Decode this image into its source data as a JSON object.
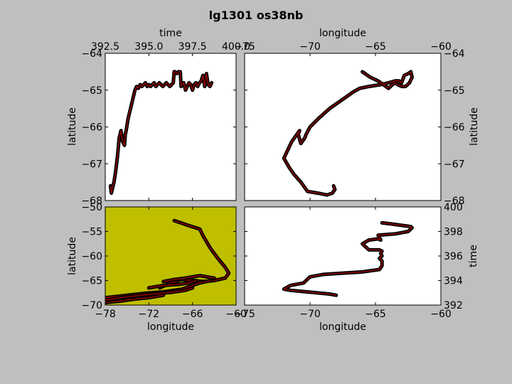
{
  "title": "lg1301 os38nb",
  "colors": {
    "figure_bg": "#bfbfbf",
    "panel_bg": "#ffffff",
    "map_bg": "#bfbf00",
    "track": "#000000",
    "track_inner": "#8b0000"
  },
  "chart_data": [
    {
      "id": "time-latitude",
      "type": "line",
      "xlabel": "time",
      "ylabel": "latitude",
      "x_axis_position": "top",
      "y_axis_position": "left",
      "xlim": [
        392.5,
        400.0
      ],
      "ylim": [
        -68,
        -64
      ],
      "xticks": [
        "392.5",
        "395.0",
        "397.5",
        "400.0"
      ],
      "yticks": [
        "−64",
        "−65",
        "−66",
        "−67",
        "−68"
      ],
      "series": [
        {
          "x": [
            392.8,
            392.85,
            392.9,
            393.0,
            393.1,
            393.2,
            393.3,
            393.4,
            393.5,
            393.6,
            393.65,
            393.7,
            393.8,
            393.9,
            394.0,
            394.1,
            394.2,
            394.3,
            394.4,
            394.5,
            394.6,
            394.7,
            394.8,
            394.9,
            395.0,
            395.1,
            395.2,
            395.3,
            395.4,
            395.5,
            395.6,
            395.7,
            395.8,
            395.9,
            396.0,
            396.1,
            396.2,
            396.3,
            396.4,
            396.45,
            396.5,
            396.6,
            396.7,
            396.8,
            396.85,
            396.9,
            397.0,
            397.1,
            397.2,
            397.3,
            397.4,
            397.5,
            397.6,
            397.7,
            397.8,
            397.9,
            398.0,
            398.1,
            398.2,
            398.3,
            398.4,
            398.5,
            398.6
          ],
          "y": [
            -67.6,
            -67.8,
            -67.7,
            -67.5,
            -67.2,
            -66.8,
            -66.3,
            -66.1,
            -66.4,
            -66.5,
            -66.2,
            -66.1,
            -65.8,
            -65.6,
            -65.4,
            -65.2,
            -65.0,
            -64.9,
            -64.95,
            -64.85,
            -64.9,
            -64.85,
            -64.8,
            -64.9,
            -64.85,
            -64.9,
            -64.85,
            -64.8,
            -64.9,
            -64.85,
            -64.8,
            -64.85,
            -64.9,
            -64.85,
            -64.8,
            -64.85,
            -64.9,
            -64.85,
            -64.8,
            -64.5,
            -64.5,
            -64.55,
            -64.5,
            -64.5,
            -64.9,
            -64.85,
            -64.8,
            -65.0,
            -64.9,
            -64.8,
            -64.85,
            -65.0,
            -64.85,
            -64.8,
            -64.9,
            -64.8,
            -64.75,
            -64.6,
            -64.9,
            -64.55,
            -64.85,
            -64.9,
            -64.8
          ]
        }
      ]
    },
    {
      "id": "longitude-latitude",
      "type": "line",
      "xlabel": "longitude",
      "ylabel": "latitude",
      "x_axis_position": "top",
      "y_axis_position": "right",
      "xlim": [
        -75,
        -60
      ],
      "ylim": [
        -68,
        -64
      ],
      "xticks": [
        "−75",
        "−70",
        "−65",
        "−60"
      ],
      "yticks": [
        "−64",
        "−65",
        "−66",
        "−67",
        "−68"
      ],
      "series": [
        {
          "x": [
            -68.2,
            -68.1,
            -68.3,
            -68.7,
            -69.4,
            -70.2,
            -70.7,
            -71.2,
            -71.6,
            -72.0,
            -71.4,
            -70.8,
            -70.9,
            -70.7,
            -70.4,
            -70.3,
            -70.0,
            -69.3,
            -68.5,
            -67.5,
            -66.7,
            -66.2,
            -65.5,
            -64.6,
            -64.0,
            -63.5,
            -63.2,
            -63.0,
            -62.8,
            -62.5,
            -62.3,
            -62.2,
            -62.4,
            -62.7,
            -63.0,
            -63.3,
            -63.5,
            -63.7,
            -64.0,
            -64.8,
            -65.4,
            -66.0
          ],
          "y": [
            -67.6,
            -67.7,
            -67.8,
            -67.85,
            -67.8,
            -67.75,
            -67.5,
            -67.3,
            -67.1,
            -66.85,
            -66.4,
            -66.1,
            -66.2,
            -66.45,
            -66.3,
            -66.2,
            -66.0,
            -65.75,
            -65.5,
            -65.25,
            -65.05,
            -64.95,
            -64.9,
            -64.85,
            -64.8,
            -64.75,
            -64.75,
            -64.8,
            -64.6,
            -64.55,
            -64.5,
            -64.65,
            -64.8,
            -64.9,
            -64.9,
            -64.85,
            -64.8,
            -64.85,
            -64.95,
            -64.75,
            -64.65,
            -64.5
          ]
        }
      ]
    },
    {
      "id": "map-longitude-latitude",
      "type": "line",
      "xlabel": "longitude",
      "ylabel": "latitude",
      "x_axis_position": "bottom",
      "y_axis_position": "left",
      "xlim": [
        -78,
        -60
      ],
      "ylim": [
        -70,
        -50
      ],
      "xticks": [
        "−78",
        "−72",
        "−66",
        "−60"
      ],
      "yticks": [
        "−50",
        "−55",
        "−60",
        "−65",
        "−70"
      ],
      "series": [
        {
          "x": [
            -68.5,
            -66.5,
            -65.0,
            -64.5,
            -63.5,
            -62.5,
            -61.5,
            -61.0,
            -61.5,
            -63.0,
            -64.5,
            -66.0,
            -67.5,
            -69.0,
            -70.5
          ],
          "y": [
            -52.8,
            -53.8,
            -54.5,
            -56.0,
            -58.5,
            -60.5,
            -62.3,
            -63.5,
            -64.5,
            -65.0,
            -65.2,
            -65.0,
            -64.8,
            -65.5,
            -66.5
          ]
        },
        {
          "x": [
            -78.0,
            -75.0,
            -72.5,
            -70.0,
            -67.5,
            -65.0,
            -63.5
          ],
          "y": [
            -68.5,
            -68.0,
            -67.6,
            -67.3,
            -66.8,
            -65.5,
            -65.0
          ]
        },
        {
          "x": [
            -78.0,
            -75.5,
            -73.0,
            -71.0,
            -69.0,
            -67.0,
            -66.0
          ],
          "y": [
            -69.0,
            -68.4,
            -68.0,
            -67.7,
            -67.4,
            -67.0,
            -66.5
          ]
        },
        {
          "x": [
            -72.0,
            -70.0,
            -68.0,
            -66.5,
            -65.5
          ],
          "y": [
            -66.5,
            -66.0,
            -65.8,
            -65.5,
            -65.0
          ]
        },
        {
          "x": [
            -70.0,
            -68.5,
            -67.0,
            -65.0,
            -63.0
          ],
          "y": [
            -65.2,
            -64.8,
            -64.5,
            -64.0,
            -64.5
          ]
        },
        {
          "x": [
            -78.0,
            -76.0,
            -74.0,
            -72.0,
            -70.0
          ],
          "y": [
            -69.5,
            -69.2,
            -68.8,
            -68.5,
            -68.0
          ]
        }
      ]
    },
    {
      "id": "longitude-time",
      "type": "line",
      "xlabel": "longitude",
      "ylabel": "time",
      "x_axis_position": "bottom",
      "y_axis_position": "right",
      "xlim": [
        -75,
        -60
      ],
      "ylim": [
        392,
        400
      ],
      "xticks": [
        "−75",
        "−70",
        "−65",
        "−60"
      ],
      "yticks": [
        "400",
        "398",
        "396",
        "394",
        "392"
      ],
      "series": [
        {
          "x": [
            -68.0,
            -68.5,
            -69.5,
            -70.5,
            -71.5,
            -72.0,
            -71.5,
            -70.5,
            -70.0,
            -69.0,
            -67.5,
            -66.0,
            -64.7,
            -64.5,
            -64.5,
            -64.7,
            -64.5,
            -64.6,
            -64.5,
            -64.7,
            -65.5,
            -66.0,
            -65.5,
            -64.8,
            -64.6,
            -64.8,
            -63.5,
            -62.5,
            -62.2,
            -62.3,
            -63.0,
            -63.7,
            -64.5
          ],
          "y": [
            392.8,
            392.9,
            393.0,
            393.1,
            393.2,
            393.3,
            393.6,
            393.8,
            394.3,
            394.5,
            394.6,
            394.7,
            394.9,
            395.2,
            395.6,
            395.8,
            396.0,
            396.2,
            396.4,
            396.5,
            396.5,
            397.0,
            397.3,
            397.4,
            397.3,
            397.7,
            397.8,
            398.0,
            398.3,
            398.4,
            398.5,
            398.6,
            398.7
          ]
        }
      ]
    }
  ]
}
